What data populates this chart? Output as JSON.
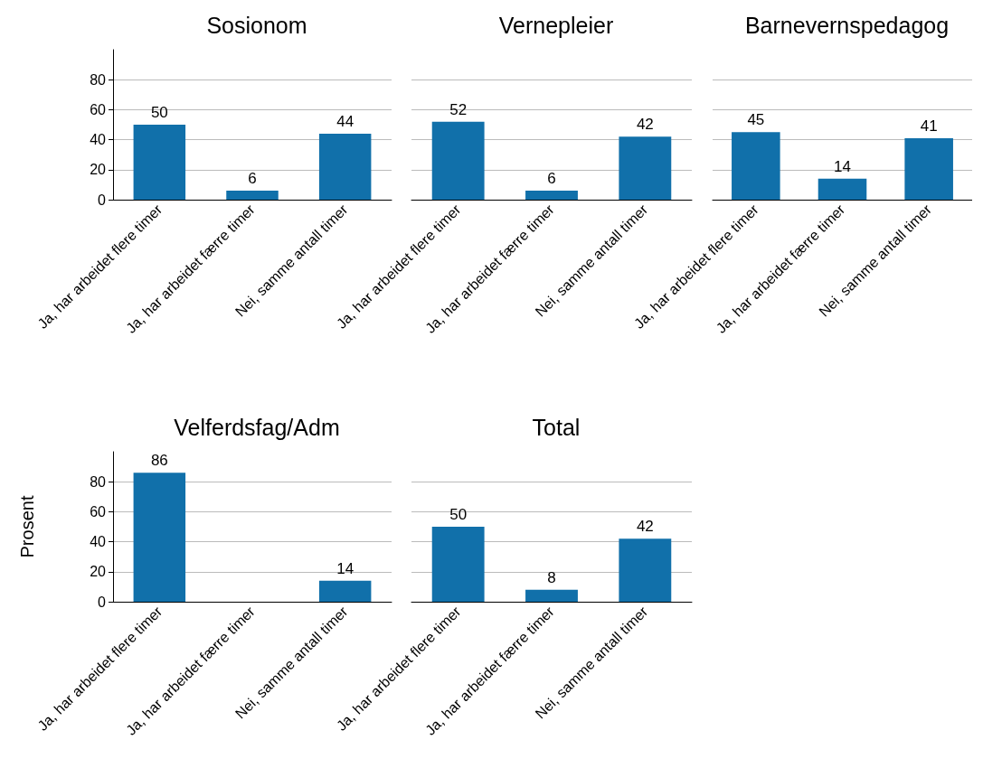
{
  "chart_data": [
    {
      "type": "bar",
      "title": "Sosionom",
      "categories": [
        "Ja, har arbeidet flere timer",
        "Ja, har arbeidet færre timer",
        "Nei, samme antall timer"
      ],
      "values": [
        50,
        6,
        44
      ],
      "color": "#1170aa",
      "ylim": [
        0,
        100
      ],
      "yticks": [
        0,
        20,
        40,
        60,
        80
      ],
      "grid": "y",
      "data_labels": true
    },
    {
      "type": "bar",
      "title": "Vernepleier",
      "categories": [
        "Ja, har arbeidet flere timer",
        "Ja, har arbeidet færre timer",
        "Nei, samme antall timer"
      ],
      "values": [
        52,
        6,
        42
      ],
      "color": "#1170aa",
      "yticks": [
        0,
        20,
        40,
        60,
        80
      ],
      "grid": "y",
      "data_labels": true,
      "tick_labels": "x"
    },
    {
      "type": "bar",
      "title": "Barnevernspedagog",
      "categories": [
        "Ja, har arbeidet flere timer",
        "Ja, har arbeidet færre timer",
        "Nei, samme antall timer"
      ],
      "values": [
        45,
        14,
        41
      ],
      "color": "#1170aa",
      "yticks": [
        0,
        20,
        40,
        60,
        80
      ],
      "grid": "y",
      "data_labels": true,
      "tick_labels": "x"
    },
    {
      "type": "bar",
      "title": "Velferdsfag/Adm",
      "ylabel": "Prosent",
      "categories": [
        "Ja, har arbeidet flere timer",
        "Ja, har arbeidet færre timer",
        "Nei, samme antall timer"
      ],
      "values": [
        86,
        null,
        14
      ],
      "color": "#1170aa",
      "ylim": [
        0,
        100
      ],
      "yticks": [
        0,
        20,
        40,
        60,
        80
      ],
      "grid": "y",
      "data_labels": true
    },
    {
      "type": "bar",
      "title": "Total",
      "categories": [
        "Ja, har arbeidet flere timer",
        "Ja, har arbeidet færre timer",
        "Nei, samme antall timer"
      ],
      "values": [
        50,
        8,
        42
      ],
      "color": "#1170aa",
      "yticks": [
        0,
        20,
        40,
        60,
        80
      ],
      "grid": "y",
      "data_labels": true,
      "tick_labels": "x"
    }
  ]
}
